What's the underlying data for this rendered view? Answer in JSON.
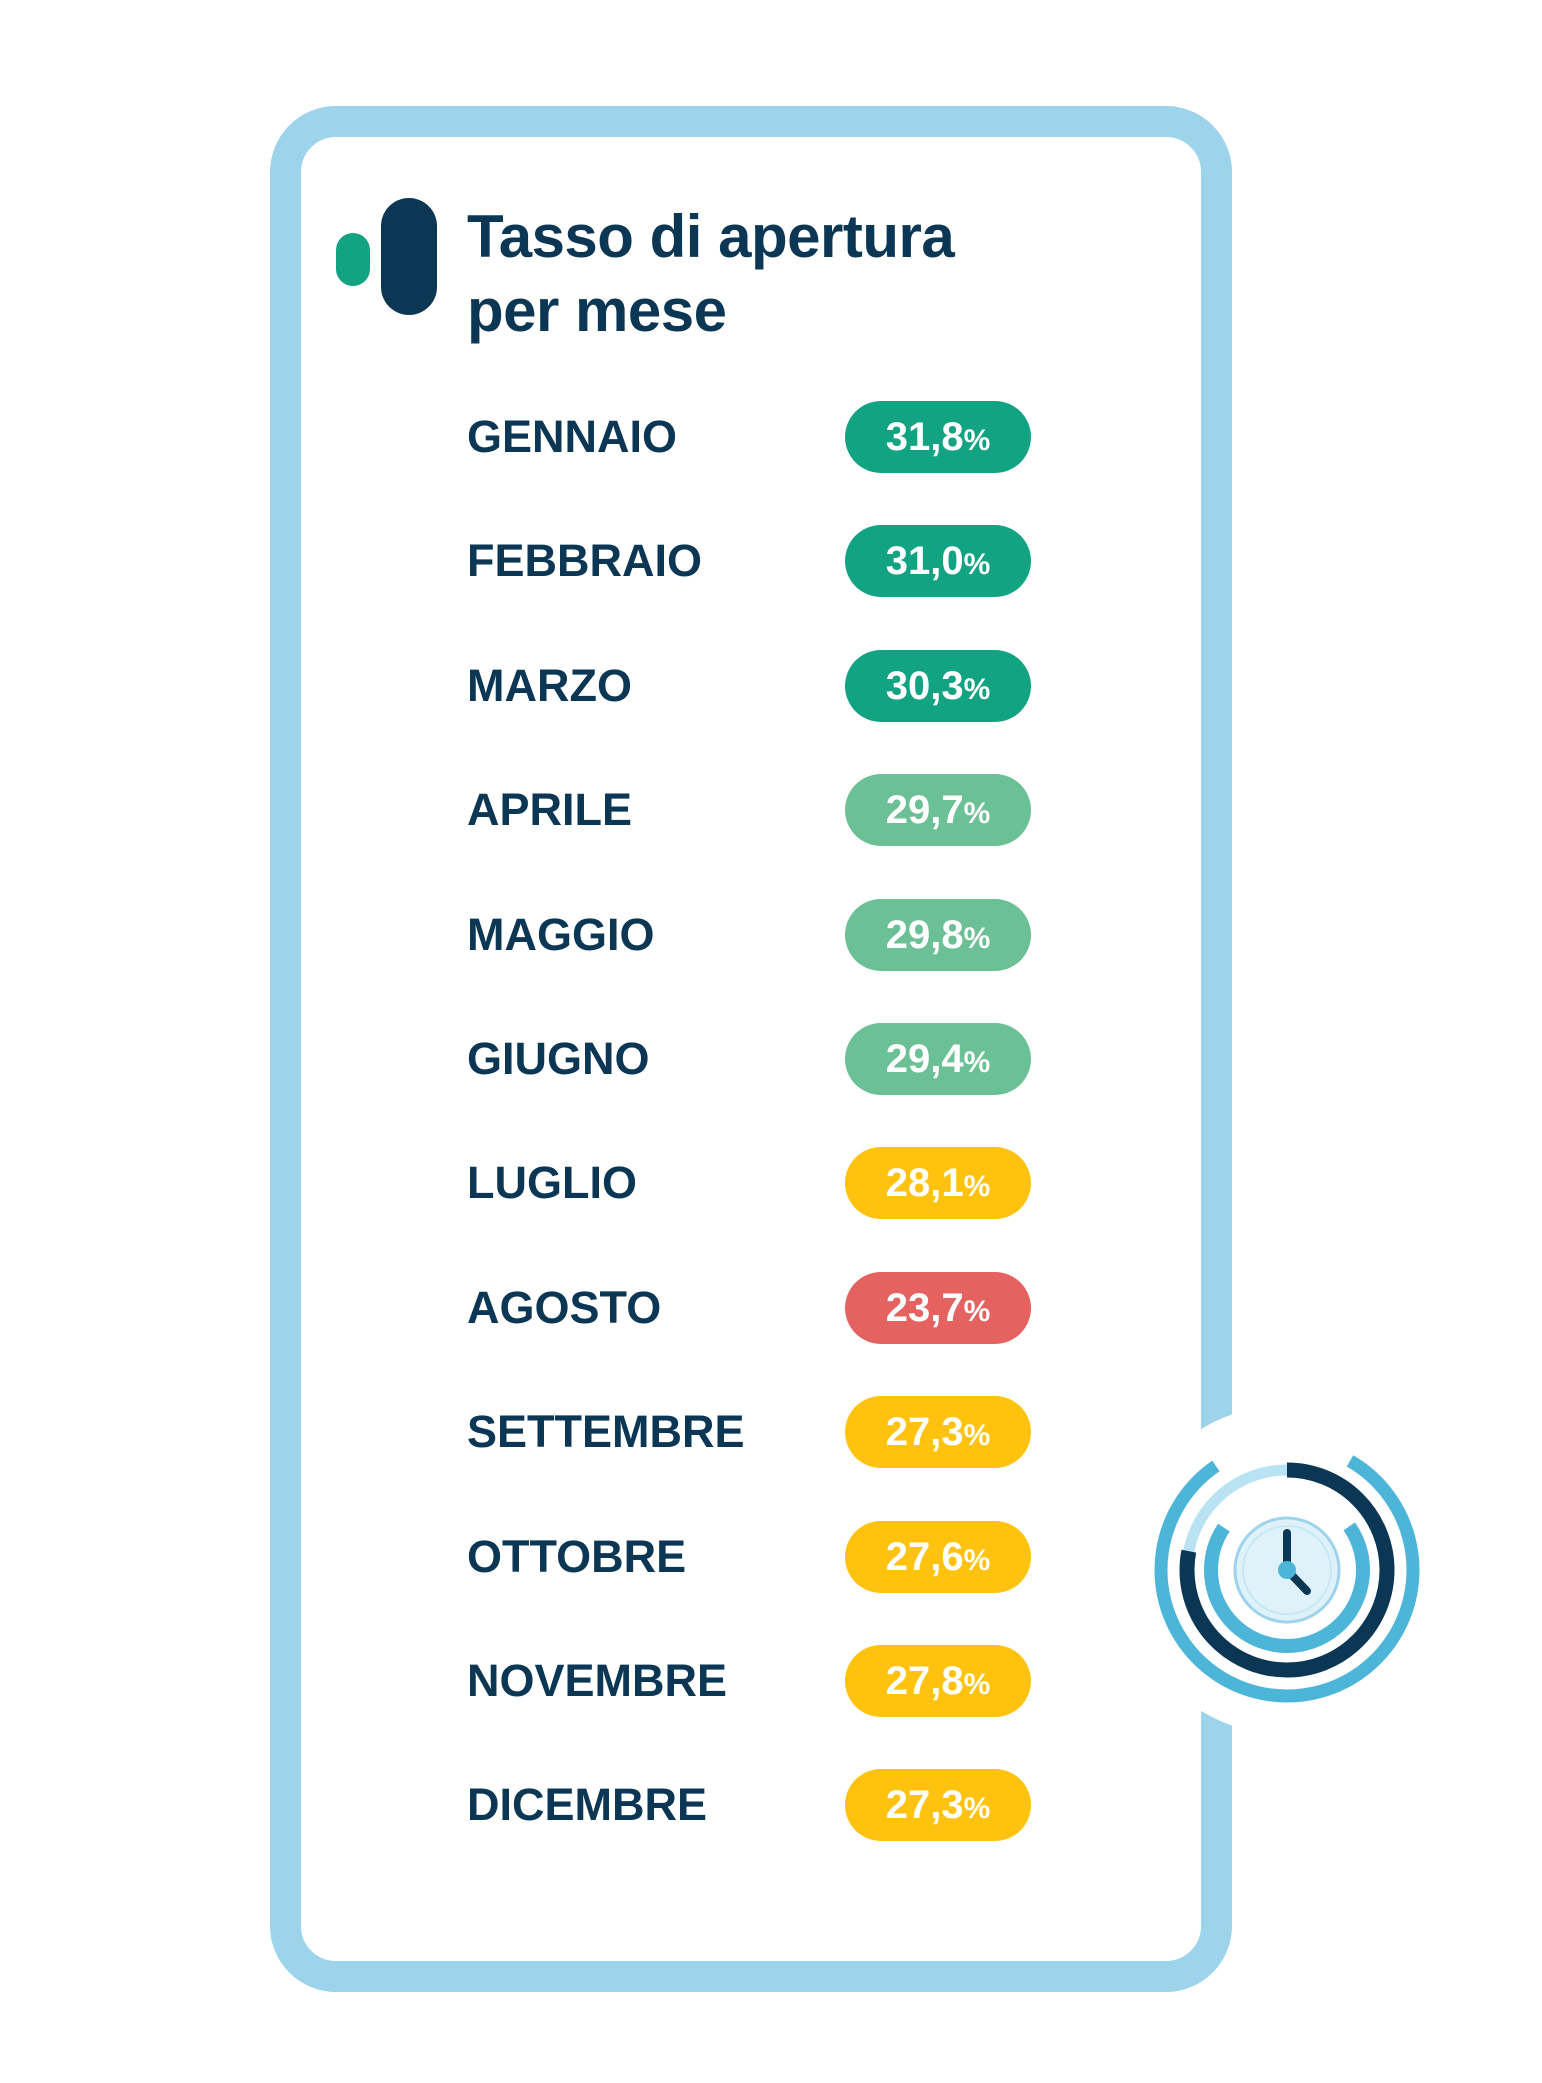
{
  "title_lines": [
    "Tasso di apertura",
    "per mese"
  ],
  "colors": {
    "frame": "#9dd4ec",
    "title": "#0b3754",
    "logo_accent": "#12a382",
    "rate_high": "#12a382",
    "rate_medium": "#6cc095",
    "rate_low": "#ffc20e",
    "rate_lowest": "#e4625f"
  },
  "icons": [
    "logo-bars-icon",
    "clock-progress-icon"
  ],
  "chart_data": {
    "type": "table",
    "title": "Tasso di apertura per mese",
    "unit": "%",
    "rows": [
      {
        "month": "GENNAIO",
        "value_label": "31,8",
        "value": 31.8,
        "color": "#12a382"
      },
      {
        "month": "FEBBRAIO",
        "value_label": "31,0",
        "value": 31.0,
        "color": "#12a382"
      },
      {
        "month": "MARZO",
        "value_label": "30,3",
        "value": 30.3,
        "color": "#12a382"
      },
      {
        "month": "APRILE",
        "value_label": "29,7",
        "value": 29.7,
        "color": "#6cc095"
      },
      {
        "month": "MAGGIO",
        "value_label": "29,8",
        "value": 29.8,
        "color": "#6cc095"
      },
      {
        "month": "GIUGNO",
        "value_label": "29,4",
        "value": 29.4,
        "color": "#6cc095"
      },
      {
        "month": "LUGLIO",
        "value_label": "28,1",
        "value": 28.1,
        "color": "#ffc20e"
      },
      {
        "month": "AGOSTO",
        "value_label": "23,7",
        "value": 23.7,
        "color": "#e4625f"
      },
      {
        "month": "SETTEMBRE",
        "value_label": "27,3",
        "value": 27.3,
        "color": "#ffc20e"
      },
      {
        "month": "OTTOBRE",
        "value_label": "27,6",
        "value": 27.6,
        "color": "#ffc20e"
      },
      {
        "month": "NOVEMBRE",
        "value_label": "27,8",
        "value": 27.8,
        "color": "#ffc20e"
      },
      {
        "month": "DICEMBRE",
        "value_label": "27,3",
        "value": 27.3,
        "color": "#ffc20e"
      }
    ]
  }
}
